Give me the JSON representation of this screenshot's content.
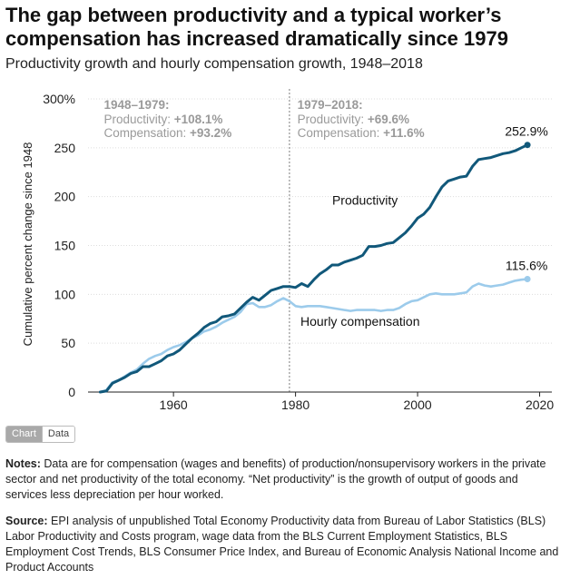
{
  "title": "The gap between productivity and a typical worker’s compensation has increased dramatically since 1979",
  "subtitle": "Productivity growth and hourly compensation growth, 1948–2018",
  "toggle": {
    "chart_label": "Chart",
    "data_label": "Data"
  },
  "notes": {
    "label": "Notes:",
    "text": "Data are for compensation (wages and benefits) of production/nonsupervisory workers in the private sector and net productivity of the total economy. “Net productivity” is the growth of output of goods and services less depreciation per hour worked."
  },
  "source": {
    "label": "Source:",
    "text": "EPI analysis of unpublished Total Economy Productivity data from Bureau of Labor Statistics (BLS) Labor Productivity and Costs program, wage data from the BLS Current Employment Statistics, BLS Employment Cost Trends, BLS Consumer Price Index, and Bureau of Economic Analysis National Income and Product Accounts"
  },
  "colors": {
    "productivity": "#11587a",
    "compensation": "#9ccbeb",
    "annotation_gray": "#9a9a9a",
    "axis": "#222222",
    "grid": "#dddddd"
  },
  "chart_data": {
    "type": "line",
    "title": "The gap between productivity and a typical worker’s compensation has increased dramatically since 1979",
    "subtitle": "Productivity growth and hourly compensation growth, 1948–2018",
    "xlabel": "",
    "ylabel": "Cumulative percent change since 1948",
    "xlim": [
      1948,
      2018
    ],
    "ylim": [
      0,
      300
    ],
    "x_ticks": [
      "1960",
      "1980",
      "2000",
      "2020"
    ],
    "y_ticks": [
      "0",
      "50",
      "100",
      "150",
      "200",
      "250",
      "300%"
    ],
    "grid": true,
    "vline": {
      "x": 1979,
      "style": "dotted"
    },
    "x": [
      1948,
      1949,
      1950,
      1951,
      1952,
      1953,
      1954,
      1955,
      1956,
      1957,
      1958,
      1959,
      1960,
      1961,
      1962,
      1963,
      1964,
      1965,
      1966,
      1967,
      1968,
      1969,
      1970,
      1971,
      1972,
      1973,
      1974,
      1975,
      1976,
      1977,
      1978,
      1979,
      1980,
      1981,
      1982,
      1983,
      1984,
      1985,
      1986,
      1987,
      1988,
      1989,
      1990,
      1991,
      1992,
      1993,
      1994,
      1995,
      1996,
      1997,
      1998,
      1999,
      2000,
      2001,
      2002,
      2003,
      2004,
      2005,
      2006,
      2007,
      2008,
      2009,
      2010,
      2011,
      2012,
      2013,
      2014,
      2015,
      2016,
      2017,
      2018
    ],
    "series": [
      {
        "name": "Productivity",
        "values": [
          0,
          1,
          9,
          12,
          15,
          19,
          21,
          26,
          26,
          29,
          32,
          37,
          39,
          43,
          49,
          55,
          60,
          66,
          70,
          72,
          77,
          78,
          80,
          86,
          92,
          97,
          94,
          99,
          104,
          106,
          108,
          108,
          107,
          111,
          108,
          115,
          121,
          125,
          130,
          130,
          133,
          135,
          137,
          140,
          149,
          149,
          150,
          152,
          153,
          158,
          163,
          170,
          178,
          182,
          189,
          200,
          210,
          216,
          218,
          220,
          221,
          231,
          238,
          239,
          240,
          242,
          244,
          245,
          247,
          250,
          252.9
        ],
        "end_label": "252.9%"
      },
      {
        "name": "Hourly compensation",
        "values": [
          0,
          2,
          10,
          12,
          16,
          20,
          23,
          29,
          34,
          37,
          39,
          43,
          46,
          48,
          51,
          55,
          58,
          62,
          64,
          67,
          71,
          74,
          77,
          82,
          90,
          91,
          87,
          87,
          89,
          93,
          96,
          93,
          88,
          87,
          88,
          88,
          88,
          87,
          86,
          85,
          84,
          83,
          84,
          84,
          84,
          84,
          83,
          84,
          84,
          86,
          90,
          93,
          94,
          97,
          100,
          101,
          100,
          100,
          100,
          101,
          102,
          108,
          111,
          109,
          108,
          109,
          110,
          112,
          114,
          115,
          115.6
        ],
        "end_label": "115.6%"
      }
    ],
    "annotations": [
      {
        "period": "1948–1979:",
        "line1_label": "Productivity: ",
        "line1_value": "+108.1%",
        "line2_label": "Compensation: ",
        "line2_value": "+93.2%"
      },
      {
        "period": "1979–2018:",
        "line1_label": "Productivity: ",
        "line1_value": "+69.6%",
        "line2_label": "Compensation: ",
        "line2_value": "+11.6%"
      }
    ]
  }
}
